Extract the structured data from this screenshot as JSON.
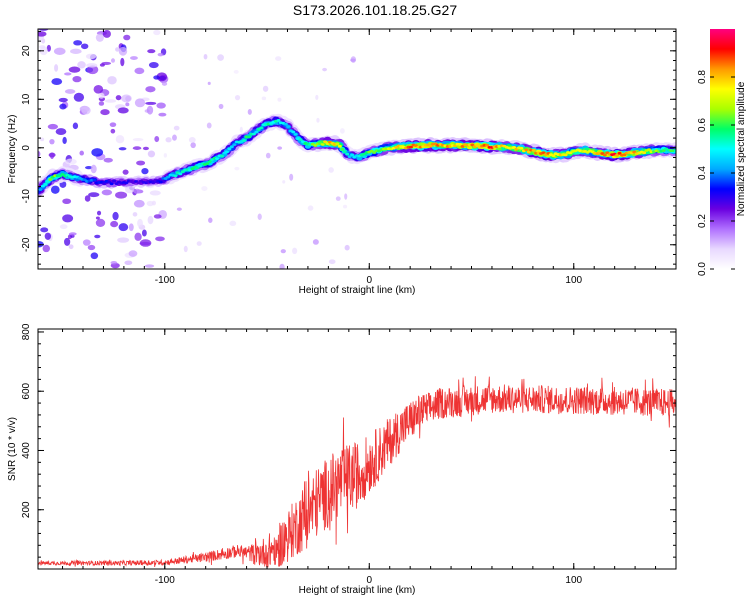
{
  "title": "S173.2026.101.18.25.G27",
  "chart_data": [
    {
      "type": "heatmap",
      "title": "S173.2026.101.18.25.G27",
      "xlabel": "Height of straight line (km)",
      "ylabel": "Frequency (Hz)",
      "xlim": [
        -162,
        150
      ],
      "ylim": [
        -25,
        24.5
      ],
      "xticks": [
        -100,
        0,
        100
      ],
      "yticks": [
        -20,
        -10,
        0,
        10,
        20
      ],
      "colorbar": {
        "label": "Normalized spectral amplitude",
        "range": [
          0,
          1
        ],
        "ticks": [
          "0.0",
          "0.2",
          "0.4",
          "0.6",
          "0.8"
        ],
        "colormap": [
          "#ffffff",
          "#e8d8ff",
          "#b070ff",
          "#6a00e0",
          "#0000ff",
          "#00aaff",
          "#00ffff",
          "#00ff66",
          "#aaff00",
          "#ffff00",
          "#ff9900",
          "#ff0000",
          "#ff0080"
        ]
      },
      "ridge": {
        "x": [
          -162,
          -155,
          -150,
          -140,
          -130,
          -110,
          -102,
          -95,
          -85,
          -78,
          -70,
          -65,
          -60,
          -55,
          -50,
          -45,
          -40,
          -35,
          -30,
          -25,
          -20,
          -15,
          -10,
          -5,
          0,
          5,
          10,
          20,
          30,
          40,
          50,
          60,
          65,
          70,
          75,
          80,
          85,
          90,
          95,
          100,
          105,
          110,
          115,
          120,
          130,
          140,
          150
        ],
        "y": [
          -9,
          -6,
          -5.5,
          -6.5,
          -7.2,
          -7,
          -6.8,
          -5.5,
          -4,
          -3,
          -1,
          1,
          2,
          3.5,
          5,
          5.5,
          4.5,
          2,
          0.5,
          0.8,
          1,
          0.8,
          -1.5,
          -2,
          -1,
          -0.5,
          0,
          0.3,
          0.5,
          0.5,
          0.4,
          0.3,
          0.2,
          0,
          -0.3,
          -0.8,
          -1.3,
          -1.5,
          -1.5,
          -0.8,
          -0.5,
          -0.9,
          -1.2,
          -1.5,
          -1,
          -0.5,
          -0.5
        ]
      },
      "ridge_amplitude": [
        0.4,
        0.7,
        0.6,
        0.45,
        0.35,
        0.3,
        0.35,
        0.55,
        0.6,
        0.6,
        0.55,
        0.5,
        0.6,
        0.55,
        0.6,
        0.55,
        0.5,
        0.55,
        0.6,
        0.7,
        0.85,
        0.8,
        0.5,
        0.55,
        0.65,
        0.7,
        0.75,
        0.9,
        0.9,
        0.85,
        0.9,
        0.95,
        0.8,
        0.8,
        0.85,
        0.9,
        0.95,
        0.85,
        0.8,
        0.75,
        0.8,
        0.8,
        0.9,
        0.95,
        0.85,
        0.7,
        0.6
      ]
    },
    {
      "type": "line",
      "xlabel": "Height of straight line (km)",
      "ylabel": "SNR (10 * v/v)",
      "xlim": [
        -162,
        150
      ],
      "ylim": [
        0,
        810
      ],
      "xticks": [
        -100,
        0,
        100
      ],
      "yticks": [
        200,
        400,
        600,
        800
      ],
      "series": [
        {
          "name": "SNR",
          "color": "#ee3333",
          "trend": {
            "x": [
              -162,
              -120,
              -100,
              -80,
              -65,
              -55,
              -45,
              -35,
              -25,
              -15,
              -5,
              5,
              15,
              25,
              35,
              60,
              100,
              130,
              150
            ],
            "y": [
              20,
              20,
              22,
              40,
              60,
              50,
              70,
              150,
              230,
              290,
              320,
              390,
              470,
              530,
              560,
              575,
              570,
              565,
              560
            ]
          },
          "noise": {
            "x": [
              -162,
              -100,
              -60,
              -45,
              -30,
              -10,
              10,
              30,
              80,
              150
            ],
            "y": [
              10,
              15,
              40,
              120,
              200,
              200,
              140,
              90,
              80,
              80
            ]
          }
        }
      ]
    }
  ]
}
